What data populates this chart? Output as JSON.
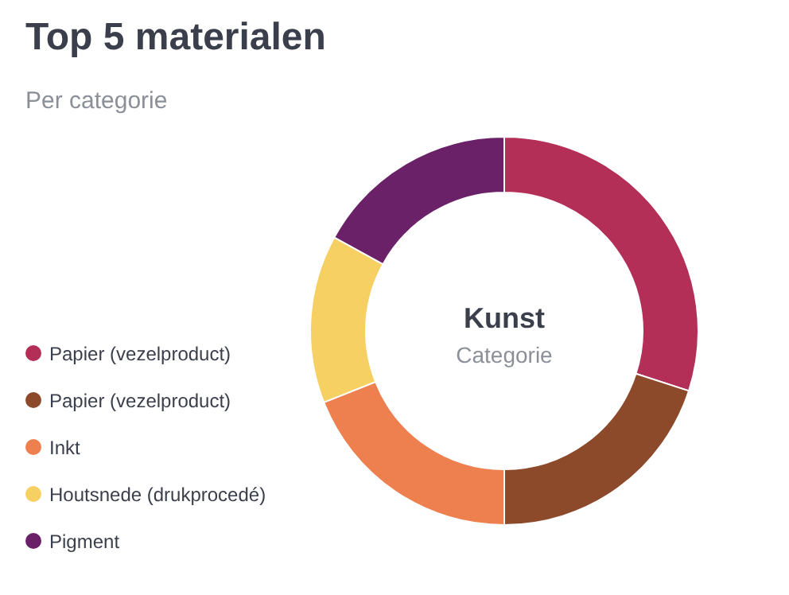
{
  "chart_data": {
    "type": "donut",
    "title": "Top 5 materialen",
    "subtitle": "Per categorie",
    "categories": [
      "Papier (vezelproduct)",
      "Papier (vezelproduct)",
      "Inkt",
      "Houtsnede (drukprocedé)",
      "Pigment"
    ],
    "values": [
      30,
      20,
      19,
      14,
      17
    ],
    "colors": [
      "#b42f58",
      "#8c4a2b",
      "#ee7f4f",
      "#f7d063",
      "#6a2168"
    ],
    "annotations": [
      "Kunst",
      "Categorie"
    ],
    "legend": "bottom left"
  }
}
